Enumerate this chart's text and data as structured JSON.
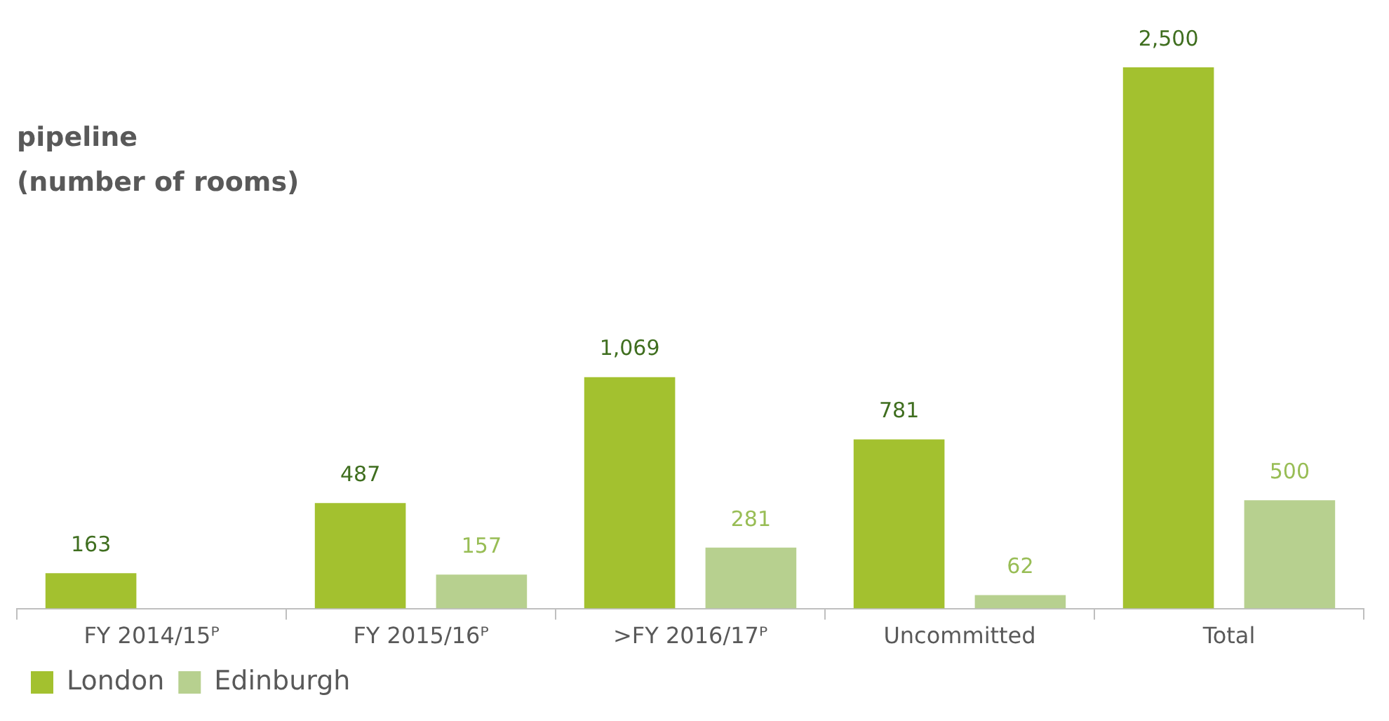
{
  "chart_data": {
    "type": "bar",
    "title": "pipeline",
    "subtitle": "(number of rooms)",
    "categories": [
      "FY 2014/15ᴾ",
      "FY 2015/16ᴾ",
      ">FY 2016/17ᴾ",
      "Uncommitted",
      "Total"
    ],
    "series": [
      {
        "name": "London",
        "color": "#a3c12f",
        "values": [
          163,
          487,
          1069,
          781,
          2500
        ],
        "value_labels": [
          "163",
          "487",
          "1,069",
          "781",
          "2,500"
        ]
      },
      {
        "name": "Edinburgh",
        "color": "#b7d08f",
        "values": [
          null,
          157,
          281,
          62,
          500
        ],
        "value_labels": [
          null,
          "157",
          "281",
          "62",
          "500"
        ]
      }
    ],
    "legend": "bottom left",
    "grid": false
  }
}
